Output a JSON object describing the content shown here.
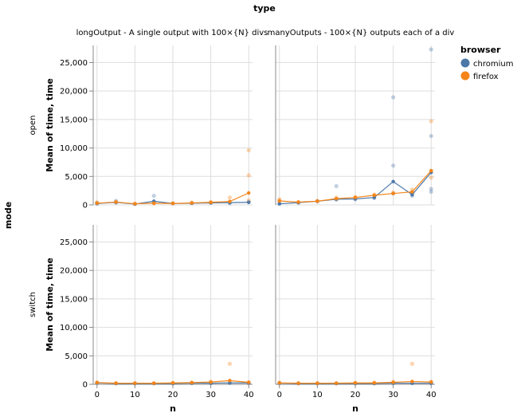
{
  "chart_data": {
    "type": "line",
    "column_header": "type",
    "row_header": "mode",
    "columns": [
      "longOutput - A single output with 100×{N} divs",
      "manyOutputs - 100×{N} outputs each of a div"
    ],
    "rows": [
      "open",
      "switch"
    ],
    "xlabel": "n",
    "ylabel": "Mean of time, time",
    "x_ticks": [
      "0",
      "10",
      "20",
      "30",
      "40"
    ],
    "y_ticks": [
      "0",
      "5,000",
      "10,000",
      "15,000",
      "20,000",
      "25,000"
    ],
    "xlim": [
      -1,
      41
    ],
    "ylim": [
      0,
      28000
    ],
    "x": [
      0,
      5,
      10,
      15,
      20,
      25,
      30,
      35,
      40
    ],
    "legend": {
      "title": "browser",
      "position": "top-right",
      "entries": [
        "chromium",
        "firefox"
      ]
    },
    "colors": {
      "chromium": "#4c78a8",
      "firefox": "#f58518"
    },
    "facets": [
      {
        "column": 0,
        "row": 0,
        "lines": {
          "chromium": [
            250,
            450,
            150,
            650,
            250,
            300,
            350,
            400,
            450
          ],
          "firefox": [
            300,
            500,
            200,
            300,
            250,
            350,
            450,
            600,
            2100
          ]
        },
        "points": {
          "chromium": [
            [
              0,
              200
            ],
            [
              0,
              350
            ],
            [
              5,
              400
            ],
            [
              5,
              700
            ],
            [
              10,
              150
            ],
            [
              15,
              1600
            ],
            [
              15,
              500
            ],
            [
              20,
              250
            ],
            [
              25,
              300
            ],
            [
              30,
              400
            ],
            [
              35,
              300
            ],
            [
              40,
              550
            ]
          ],
          "firefox": [
            [
              0,
              450
            ],
            [
              5,
              550
            ],
            [
              10,
              250
            ],
            [
              15,
              250
            ],
            [
              20,
              300
            ],
            [
              25,
              400
            ],
            [
              30,
              500
            ],
            [
              35,
              1300
            ],
            [
              40,
              5200
            ],
            [
              40,
              9600
            ],
            [
              40,
              800
            ]
          ]
        }
      },
      {
        "column": 1,
        "row": 0,
        "lines": {
          "chromium": [
            200,
            400,
            650,
            1000,
            1050,
            1300,
            4100,
            1800,
            5700
          ],
          "firefox": [
            700,
            500,
            650,
            1100,
            1300,
            1700,
            2000,
            2300,
            6000
          ]
        },
        "points": {
          "chromium": [
            [
              0,
              200
            ],
            [
              5,
              400
            ],
            [
              10,
              650
            ],
            [
              15,
              3300
            ],
            [
              15,
              900
            ],
            [
              20,
              1000
            ],
            [
              25,
              1200
            ],
            [
              30,
              18900
            ],
            [
              30,
              6900
            ],
            [
              30,
              2000
            ],
            [
              35,
              1600
            ],
            [
              40,
              27300
            ],
            [
              40,
              12100
            ],
            [
              40,
              2300
            ],
            [
              40,
              2800
            ]
          ],
          "firefox": [
            [
              0,
              700
            ],
            [
              0,
              1000
            ],
            [
              5,
              500
            ],
            [
              10,
              700
            ],
            [
              15,
              1300
            ],
            [
              20,
              1400
            ],
            [
              25,
              1800
            ],
            [
              30,
              2200
            ],
            [
              35,
              2700
            ],
            [
              35,
              2100
            ],
            [
              40,
              14700
            ],
            [
              40,
              6000
            ],
            [
              40,
              4800
            ]
          ]
        }
      },
      {
        "column": 0,
        "row": 1,
        "lines": {
          "chromium": [
            250,
            150,
            150,
            150,
            150,
            200,
            200,
            250,
            250
          ],
          "firefox": [
            300,
            200,
            200,
            200,
            250,
            300,
            400,
            650,
            350
          ]
        },
        "points": {
          "chromium": [
            [
              0,
              250
            ],
            [
              5,
              150
            ],
            [
              10,
              150
            ],
            [
              15,
              150
            ],
            [
              20,
              150
            ],
            [
              25,
              200
            ],
            [
              30,
              200
            ],
            [
              35,
              250
            ],
            [
              40,
              250
            ]
          ],
          "firefox": [
            [
              0,
              350
            ],
            [
              5,
              200
            ],
            [
              10,
              200
            ],
            [
              15,
              200
            ],
            [
              20,
              250
            ],
            [
              25,
              300
            ],
            [
              30,
              450
            ],
            [
              35,
              3600
            ],
            [
              40,
              350
            ]
          ]
        }
      },
      {
        "column": 1,
        "row": 1,
        "lines": {
          "chromium": [
            200,
            150,
            150,
            150,
            150,
            150,
            200,
            200,
            200
          ],
          "firefox": [
            250,
            200,
            200,
            200,
            250,
            250,
            350,
            500,
            400
          ]
        },
        "points": {
          "chromium": [
            [
              0,
              200
            ],
            [
              5,
              150
            ],
            [
              10,
              150
            ],
            [
              15,
              150
            ],
            [
              20,
              150
            ],
            [
              25,
              150
            ],
            [
              30,
              200
            ],
            [
              35,
              200
            ],
            [
              40,
              200
            ]
          ],
          "firefox": [
            [
              0,
              300
            ],
            [
              5,
              200
            ],
            [
              10,
              200
            ],
            [
              15,
              200
            ],
            [
              20,
              250
            ],
            [
              25,
              300
            ],
            [
              30,
              450
            ],
            [
              35,
              3600
            ],
            [
              40,
              450
            ]
          ]
        }
      }
    ]
  }
}
